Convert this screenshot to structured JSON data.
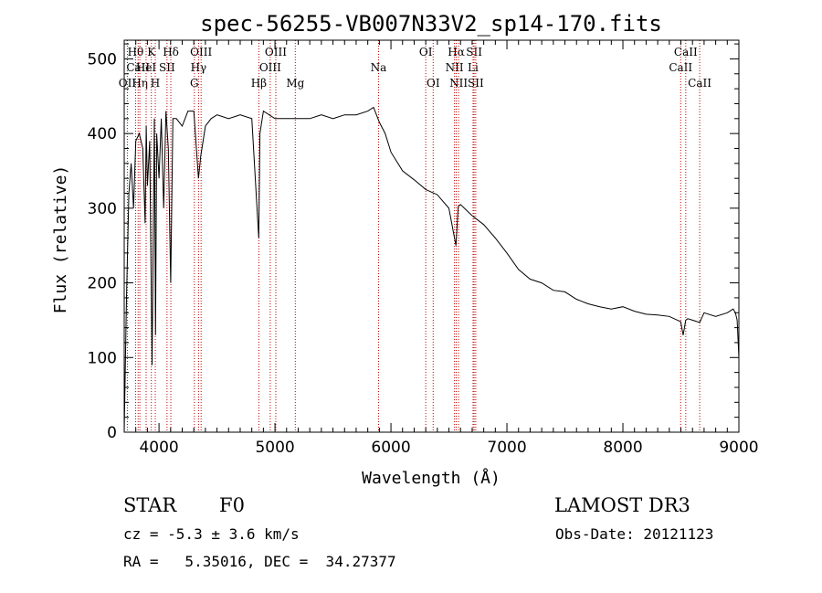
{
  "chart_data": {
    "type": "line",
    "title": "spec-56255-VB007N33V2_sp14-170.fits",
    "xlabel": "Wavelength (Å)",
    "ylabel": "Flux (relative)",
    "xlim": [
      3700,
      9000
    ],
    "ylim": [
      0,
      525
    ],
    "x_ticks": [
      4000,
      5000,
      6000,
      7000,
      8000,
      9000
    ],
    "y_ticks": [
      0,
      100,
      200,
      300,
      400,
      500
    ],
    "x_tick_labels": [
      "4000",
      "5000",
      "6000",
      "7000",
      "8000",
      "9000"
    ],
    "y_tick_labels": [
      "0",
      "100",
      "200",
      "300",
      "400",
      "500"
    ],
    "line_color": "#000000",
    "marker_color": "#c00000",
    "series": [
      {
        "name": "spectrum",
        "x": [
          3700,
          3720,
          3740,
          3760,
          3780,
          3800,
          3830,
          3860,
          3880,
          3890,
          3900,
          3920,
          3940,
          3960,
          3970,
          3980,
          4000,
          4020,
          4040,
          4060,
          4080,
          4101,
          4120,
          4150,
          4200,
          4250,
          4300,
          4340,
          4360,
          4400,
          4450,
          4500,
          4600,
          4700,
          4800,
          4860,
          4870,
          4900,
          5000,
          5100,
          5200,
          5300,
          5400,
          5500,
          5600,
          5700,
          5800,
          5850,
          5900,
          5950,
          6000,
          6100,
          6200,
          6300,
          6400,
          6500,
          6560,
          6580,
          6600,
          6700,
          6800,
          6900,
          7000,
          7100,
          7200,
          7300,
          7400,
          7500,
          7600,
          7700,
          7800,
          7900,
          8000,
          8100,
          8200,
          8300,
          8400,
          8498,
          8520,
          8542,
          8560,
          8600,
          8662,
          8700,
          8800,
          8900,
          8950,
          8970,
          8985,
          9000
        ],
        "y": [
          0,
          180,
          320,
          360,
          300,
          390,
          400,
          380,
          280,
          410,
          330,
          390,
          90,
          420,
          130,
          400,
          340,
          420,
          300,
          430,
          380,
          200,
          420,
          420,
          410,
          430,
          430,
          340,
          370,
          410,
          420,
          425,
          420,
          425,
          420,
          260,
          400,
          430,
          420,
          420,
          420,
          420,
          425,
          420,
          425,
          425,
          430,
          435,
          415,
          400,
          375,
          350,
          338,
          325,
          318,
          300,
          250,
          302,
          305,
          290,
          278,
          260,
          240,
          218,
          205,
          200,
          190,
          188,
          178,
          172,
          168,
          165,
          168,
          162,
          158,
          157,
          155,
          148,
          130,
          150,
          152,
          150,
          147,
          160,
          155,
          160,
          165,
          160,
          150,
          100
        ]
      }
    ],
    "line_markers": [
      {
        "label": "Hθ",
        "wavelength": 3798,
        "row": 1
      },
      {
        "label": "CaII",
        "wavelength": 3820,
        "row": 2
      },
      {
        "label": "OII",
        "wavelength": 3727,
        "row": 3
      },
      {
        "label": "Hη",
        "wavelength": 3835,
        "row": 3
      },
      {
        "label": "K",
        "wavelength": 3934,
        "row": 1
      },
      {
        "label": "HeI",
        "wavelength": 3889,
        "row": 2
      },
      {
        "label": "H",
        "wavelength": 3968,
        "row": 3
      },
      {
        "label": "SII",
        "wavelength": 4069,
        "row": 2
      },
      {
        "label": "Hδ",
        "wavelength": 4102,
        "row": 1
      },
      {
        "label": "OIII",
        "wavelength": 4363,
        "row": 1
      },
      {
        "label": "Hγ",
        "wavelength": 4341,
        "row": 2
      },
      {
        "label": "G",
        "wavelength": 4305,
        "row": 3
      },
      {
        "label": "Hβ",
        "wavelength": 4861,
        "row": 3
      },
      {
        "label": "OIII",
        "wavelength": 4959,
        "row": 2
      },
      {
        "label": "OIII",
        "wavelength": 5007,
        "row": 1
      },
      {
        "label": "Mg",
        "wavelength": 5175,
        "row": 3
      },
      {
        "label": "Na",
        "wavelength": 5893,
        "row": 2
      },
      {
        "label": "OI",
        "wavelength": 6300,
        "row": 1
      },
      {
        "label": "OI",
        "wavelength": 6364,
        "row": 3
      },
      {
        "label": "Hα",
        "wavelength": 6563,
        "row": 1
      },
      {
        "label": "NII",
        "wavelength": 6548,
        "row": 2
      },
      {
        "label": "NII",
        "wavelength": 6583,
        "row": 3
      },
      {
        "label": "SII",
        "wavelength": 6717,
        "row": 1
      },
      {
        "label": "Li",
        "wavelength": 6708,
        "row": 2
      },
      {
        "label": "SII",
        "wavelength": 6731,
        "row": 3
      },
      {
        "label": "CaII",
        "wavelength": 8498,
        "row": 2
      },
      {
        "label": "CaII",
        "wavelength": 8542,
        "row": 1
      },
      {
        "label": "CaII",
        "wavelength": 8662,
        "row": 3
      }
    ]
  },
  "info": {
    "class_label": "STAR",
    "subclass_label": "F0",
    "survey_label": "LAMOST DR3",
    "cz_text": "cz = -5.3 ± 3.6 km/s",
    "obs_date_text": "Obs-Date: 20121123",
    "coords_text": "RA =   5.35016, DEC =  34.27377"
  }
}
